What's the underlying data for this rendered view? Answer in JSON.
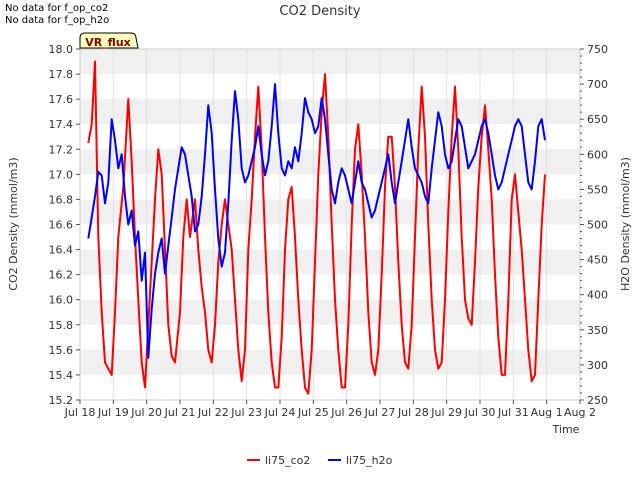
{
  "notes": [
    "No data for f_op_co2",
    "No data for f_op_h2o"
  ],
  "badge": "VR_flux",
  "chart_data": {
    "type": "line",
    "title": "CO2 Density",
    "xlabel": "Time",
    "ylabel_left": "CO2 Density (mmol/m3)",
    "ylabel_right": "H2O Density (mmol/m3)",
    "x_ticks": [
      "Jul 18",
      "Jul 19",
      "Jul 20",
      "Jul 21",
      "Jul 22",
      "Jul 23",
      "Jul 24",
      "Jul 25",
      "Jul 26",
      "Jul 27",
      "Jul 28",
      "Jul 29",
      "Jul 30",
      "Jul 31",
      "Aug 1",
      "Aug 2"
    ],
    "x_range_days": [
      18,
      33
    ],
    "ylim_left": [
      15.2,
      18.0
    ],
    "y_ticks_left": [
      "15.2",
      "15.4",
      "15.6",
      "15.8",
      "16.0",
      "16.2",
      "16.4",
      "16.6",
      "16.8",
      "17.0",
      "17.2",
      "17.4",
      "17.6",
      "17.8",
      "18.0"
    ],
    "ylim_right": [
      250,
      750
    ],
    "y_ticks_right": [
      "250",
      "300",
      "350",
      "400",
      "450",
      "500",
      "550",
      "600",
      "650",
      "700",
      "750"
    ],
    "grid": "horizontal bands",
    "legend_position": "bottom-center",
    "series": [
      {
        "name": "li75_co2",
        "axis": "left",
        "color": "#ff0000",
        "points": [
          [
            18.25,
            17.25
          ],
          [
            18.35,
            17.4
          ],
          [
            18.45,
            17.9
          ],
          [
            18.55,
            16.5
          ],
          [
            18.65,
            15.9
          ],
          [
            18.75,
            15.5
          ],
          [
            18.85,
            15.45
          ],
          [
            18.95,
            15.4
          ],
          [
            19.05,
            15.9
          ],
          [
            19.15,
            16.5
          ],
          [
            19.3,
            16.9
          ],
          [
            19.45,
            17.6
          ],
          [
            19.55,
            17.1
          ],
          [
            19.65,
            16.5
          ],
          [
            19.75,
            16.0
          ],
          [
            19.85,
            15.5
          ],
          [
            19.95,
            15.3
          ],
          [
            20.05,
            15.8
          ],
          [
            20.15,
            16.3
          ],
          [
            20.25,
            16.8
          ],
          [
            20.35,
            17.2
          ],
          [
            20.45,
            17.0
          ],
          [
            20.55,
            16.4
          ],
          [
            20.65,
            15.8
          ],
          [
            20.75,
            15.55
          ],
          [
            20.85,
            15.5
          ],
          [
            21.0,
            15.9
          ],
          [
            21.1,
            16.5
          ],
          [
            21.2,
            16.8
          ],
          [
            21.3,
            16.5
          ],
          [
            21.45,
            16.8
          ],
          [
            21.55,
            16.4
          ],
          [
            21.65,
            16.1
          ],
          [
            21.75,
            15.9
          ],
          [
            21.85,
            15.6
          ],
          [
            21.95,
            15.5
          ],
          [
            22.05,
            15.8
          ],
          [
            22.15,
            16.3
          ],
          [
            22.25,
            16.6
          ],
          [
            22.35,
            16.8
          ],
          [
            22.45,
            16.6
          ],
          [
            22.55,
            16.4
          ],
          [
            22.65,
            16.0
          ],
          [
            22.75,
            15.6
          ],
          [
            22.85,
            15.35
          ],
          [
            22.95,
            15.6
          ],
          [
            23.05,
            16.4
          ],
          [
            23.15,
            16.8
          ],
          [
            23.25,
            17.3
          ],
          [
            23.35,
            17.7
          ],
          [
            23.45,
            17.2
          ],
          [
            23.55,
            16.5
          ],
          [
            23.65,
            15.9
          ],
          [
            23.75,
            15.5
          ],
          [
            23.85,
            15.3
          ],
          [
            23.95,
            15.3
          ],
          [
            24.05,
            15.7
          ],
          [
            24.15,
            16.4
          ],
          [
            24.25,
            16.8
          ],
          [
            24.35,
            16.9
          ],
          [
            24.45,
            16.5
          ],
          [
            24.55,
            16.0
          ],
          [
            24.65,
            15.6
          ],
          [
            24.75,
            15.3
          ],
          [
            24.85,
            15.25
          ],
          [
            24.95,
            15.6
          ],
          [
            25.05,
            16.3
          ],
          [
            25.15,
            17.0
          ],
          [
            25.25,
            17.5
          ],
          [
            25.35,
            17.8
          ],
          [
            25.45,
            17.3
          ],
          [
            25.55,
            16.6
          ],
          [
            25.65,
            16.0
          ],
          [
            25.75,
            15.6
          ],
          [
            25.85,
            15.3
          ],
          [
            25.95,
            15.3
          ],
          [
            26.05,
            15.8
          ],
          [
            26.15,
            16.6
          ],
          [
            26.25,
            17.2
          ],
          [
            26.35,
            17.4
          ],
          [
            26.45,
            17.0
          ],
          [
            26.55,
            16.5
          ],
          [
            26.65,
            15.9
          ],
          [
            26.75,
            15.5
          ],
          [
            26.85,
            15.4
          ],
          [
            26.95,
            15.6
          ],
          [
            27.05,
            16.2
          ],
          [
            27.15,
            16.9
          ],
          [
            27.25,
            17.3
          ],
          [
            27.35,
            17.3
          ],
          [
            27.45,
            16.9
          ],
          [
            27.55,
            16.3
          ],
          [
            27.65,
            15.8
          ],
          [
            27.75,
            15.5
          ],
          [
            27.85,
            15.45
          ],
          [
            27.95,
            15.8
          ],
          [
            28.05,
            16.5
          ],
          [
            28.15,
            17.2
          ],
          [
            28.25,
            17.7
          ],
          [
            28.35,
            17.3
          ],
          [
            28.45,
            16.6
          ],
          [
            28.55,
            16.0
          ],
          [
            28.65,
            15.6
          ],
          [
            28.75,
            15.45
          ],
          [
            28.85,
            15.5
          ],
          [
            28.95,
            16.0
          ],
          [
            29.05,
            16.7
          ],
          [
            29.15,
            17.3
          ],
          [
            29.25,
            17.7
          ],
          [
            29.35,
            17.2
          ],
          [
            29.45,
            16.5
          ],
          [
            29.55,
            16.0
          ],
          [
            29.65,
            15.85
          ],
          [
            29.75,
            15.8
          ],
          [
            29.85,
            16.3
          ],
          [
            29.95,
            16.9
          ],
          [
            30.05,
            17.3
          ],
          [
            30.15,
            17.55
          ],
          [
            30.25,
            17.2
          ],
          [
            30.35,
            16.8
          ],
          [
            30.45,
            16.2
          ],
          [
            30.55,
            15.7
          ],
          [
            30.65,
            15.4
          ],
          [
            30.75,
            15.4
          ],
          [
            30.85,
            16.0
          ],
          [
            30.95,
            16.8
          ],
          [
            31.05,
            17.0
          ],
          [
            31.15,
            16.7
          ],
          [
            31.25,
            16.4
          ],
          [
            31.35,
            16.0
          ],
          [
            31.45,
            15.6
          ],
          [
            31.55,
            15.35
          ],
          [
            31.65,
            15.4
          ],
          [
            31.75,
            16.0
          ],
          [
            31.85,
            16.6
          ],
          [
            31.95,
            17.0
          ]
        ]
      },
      {
        "name": "li75_h2o",
        "axis": "right",
        "color": "#0000ff",
        "points": [
          [
            18.25,
            480
          ],
          [
            18.35,
            510
          ],
          [
            18.45,
            540
          ],
          [
            18.55,
            575
          ],
          [
            18.65,
            570
          ],
          [
            18.75,
            530
          ],
          [
            18.85,
            560
          ],
          [
            18.95,
            650
          ],
          [
            19.05,
            620
          ],
          [
            19.15,
            580
          ],
          [
            19.25,
            600
          ],
          [
            19.35,
            540
          ],
          [
            19.45,
            500
          ],
          [
            19.55,
            520
          ],
          [
            19.65,
            470
          ],
          [
            19.75,
            490
          ],
          [
            19.85,
            420
          ],
          [
            19.95,
            460
          ],
          [
            20.05,
            310
          ],
          [
            20.15,
            380
          ],
          [
            20.25,
            430
          ],
          [
            20.35,
            460
          ],
          [
            20.45,
            480
          ],
          [
            20.55,
            430
          ],
          [
            20.65,
            470
          ],
          [
            20.75,
            510
          ],
          [
            20.85,
            550
          ],
          [
            20.95,
            580
          ],
          [
            21.05,
            610
          ],
          [
            21.15,
            600
          ],
          [
            21.25,
            570
          ],
          [
            21.35,
            540
          ],
          [
            21.45,
            490
          ],
          [
            21.55,
            500
          ],
          [
            21.65,
            540
          ],
          [
            21.75,
            600
          ],
          [
            21.85,
            670
          ],
          [
            21.95,
            630
          ],
          [
            22.05,
            550
          ],
          [
            22.15,
            480
          ],
          [
            22.25,
            440
          ],
          [
            22.35,
            460
          ],
          [
            22.45,
            530
          ],
          [
            22.55,
            620
          ],
          [
            22.65,
            690
          ],
          [
            22.75,
            650
          ],
          [
            22.85,
            580
          ],
          [
            22.95,
            560
          ],
          [
            23.05,
            570
          ],
          [
            23.15,
            590
          ],
          [
            23.25,
            610
          ],
          [
            23.35,
            640
          ],
          [
            23.45,
            600
          ],
          [
            23.55,
            570
          ],
          [
            23.65,
            590
          ],
          [
            23.75,
            640
          ],
          [
            23.85,
            700
          ],
          [
            23.95,
            630
          ],
          [
            24.05,
            580
          ],
          [
            24.15,
            570
          ],
          [
            24.25,
            590
          ],
          [
            24.35,
            580
          ],
          [
            24.45,
            610
          ],
          [
            24.55,
            590
          ],
          [
            24.65,
            630
          ],
          [
            24.75,
            680
          ],
          [
            24.85,
            660
          ],
          [
            24.95,
            650
          ],
          [
            25.05,
            630
          ],
          [
            25.15,
            640
          ],
          [
            25.25,
            680
          ],
          [
            25.35,
            650
          ],
          [
            25.45,
            600
          ],
          [
            25.55,
            550
          ],
          [
            25.65,
            530
          ],
          [
            25.75,
            560
          ],
          [
            25.85,
            580
          ],
          [
            25.95,
            570
          ],
          [
            26.05,
            550
          ],
          [
            26.15,
            530
          ],
          [
            26.25,
            560
          ],
          [
            26.35,
            590
          ],
          [
            26.45,
            560
          ],
          [
            26.55,
            550
          ],
          [
            26.65,
            530
          ],
          [
            26.75,
            510
          ],
          [
            26.85,
            520
          ],
          [
            26.95,
            540
          ],
          [
            27.05,
            560
          ],
          [
            27.15,
            580
          ],
          [
            27.25,
            600
          ],
          [
            27.35,
            560
          ],
          [
            27.45,
            530
          ],
          [
            27.55,
            560
          ],
          [
            27.65,
            590
          ],
          [
            27.75,
            620
          ],
          [
            27.85,
            650
          ],
          [
            27.95,
            610
          ],
          [
            28.05,
            580
          ],
          [
            28.15,
            570
          ],
          [
            28.25,
            560
          ],
          [
            28.35,
            540
          ],
          [
            28.45,
            530
          ],
          [
            28.55,
            580
          ],
          [
            28.65,
            620
          ],
          [
            28.75,
            660
          ],
          [
            28.85,
            640
          ],
          [
            28.95,
            600
          ],
          [
            29.05,
            580
          ],
          [
            29.15,
            590
          ],
          [
            29.25,
            620
          ],
          [
            29.35,
            650
          ],
          [
            29.45,
            640
          ],
          [
            29.55,
            610
          ],
          [
            29.65,
            580
          ],
          [
            29.75,
            590
          ],
          [
            29.85,
            600
          ],
          [
            29.95,
            620
          ],
          [
            30.05,
            640
          ],
          [
            30.15,
            650
          ],
          [
            30.25,
            630
          ],
          [
            30.35,
            600
          ],
          [
            30.45,
            570
          ],
          [
            30.55,
            550
          ],
          [
            30.65,
            560
          ],
          [
            30.75,
            580
          ],
          [
            30.85,
            600
          ],
          [
            30.95,
            620
          ],
          [
            31.05,
            640
          ],
          [
            31.15,
            650
          ],
          [
            31.25,
            640
          ],
          [
            31.35,
            600
          ],
          [
            31.45,
            560
          ],
          [
            31.55,
            550
          ],
          [
            31.65,
            590
          ],
          [
            31.75,
            640
          ],
          [
            31.85,
            650
          ],
          [
            31.95,
            620
          ]
        ]
      }
    ]
  }
}
